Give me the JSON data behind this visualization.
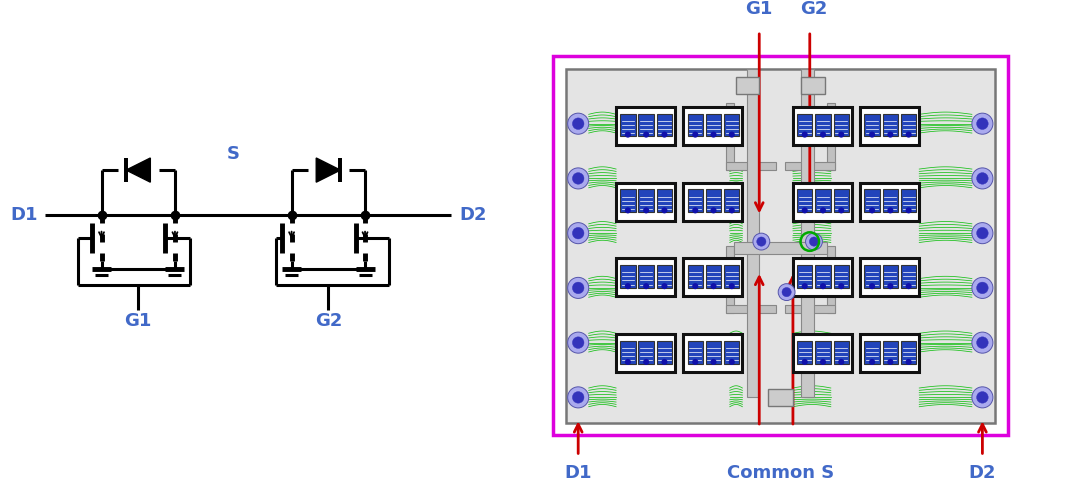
{
  "bg_color": "#ffffff",
  "schematic": {
    "D1_label": "D1",
    "D2_label": "D2",
    "G1_label": "G1",
    "G2_label": "G2",
    "S_label": "S",
    "label_color": "#4169c8",
    "line_color": "#000000",
    "line_width": 2.2
  },
  "layout": {
    "outer_border_color": "#dd00dd",
    "inner_border_color": "#666666",
    "inner_bg": "#e8e8e8",
    "dot_color_outer": "#7777cc",
    "dot_color_inner": "#2222aa",
    "mosfet_border": "#000000",
    "mosfet_bg": "#ffffff",
    "wire_color": "#00bb00",
    "arrow_color": "#cc0000",
    "G1_label": "G1",
    "G2_label": "G2",
    "D1_label": "D1",
    "D2_label": "D2",
    "CommonS_label": "Common S",
    "label_color": "#4169c8",
    "label_fontsize": 13
  }
}
